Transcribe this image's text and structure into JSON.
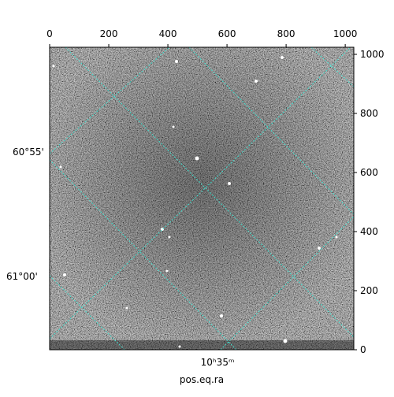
{
  "chart_data": {
    "type": "image",
    "xlabel": "pos.eq.ra",
    "xlim": [
      0,
      1029
    ],
    "xticks": [
      0,
      200,
      400,
      600,
      800,
      1000
    ],
    "ylim": [
      0,
      1024
    ],
    "yticks": [
      0,
      200,
      400,
      600,
      800,
      1000
    ],
    "world_y_labels": [
      "60°55'",
      "61°00'"
    ],
    "world_x_labels": [
      "10ʰ35ᵐ"
    ],
    "grid_color": "#40e0d0"
  }
}
